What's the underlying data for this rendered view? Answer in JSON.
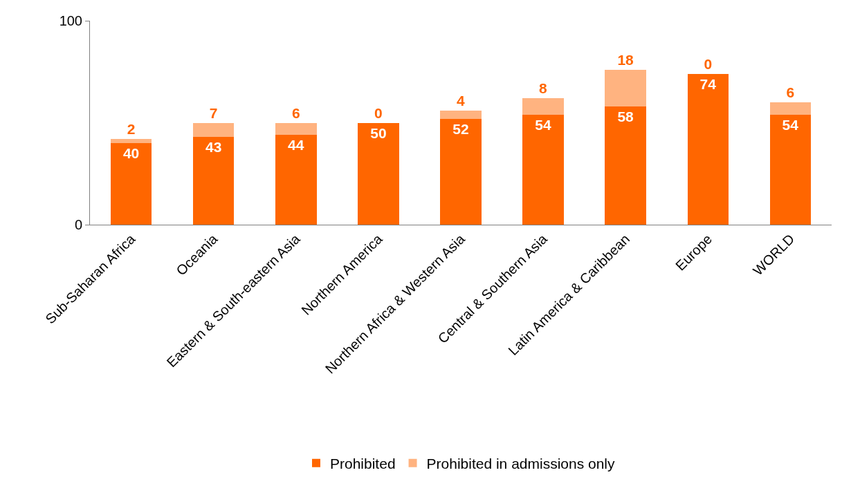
{
  "chart_data": {
    "type": "bar",
    "stacked": true,
    "categories": [
      "Sub-Saharan Africa",
      "Oceania",
      "Eastern & South-eastern Asia",
      "Northern America",
      "Northern Africa & Western Asia",
      "Central & Southern Asia",
      "Latin America & Caribbean",
      "Europe",
      "WORLD"
    ],
    "series": [
      {
        "name": "Prohibited",
        "color": "#ff6600",
        "values": [
          40,
          43,
          44,
          50,
          52,
          54,
          58,
          74,
          54
        ]
      },
      {
        "name": "Prohibited in admissions only",
        "color": "#ffb380",
        "values": [
          2,
          7,
          6,
          0,
          4,
          8,
          18,
          0,
          6
        ]
      }
    ],
    "ylim": [
      0,
      100
    ],
    "yticks": [
      0,
      100
    ],
    "grid": false,
    "legend": "bottom",
    "data_labels": true
  }
}
